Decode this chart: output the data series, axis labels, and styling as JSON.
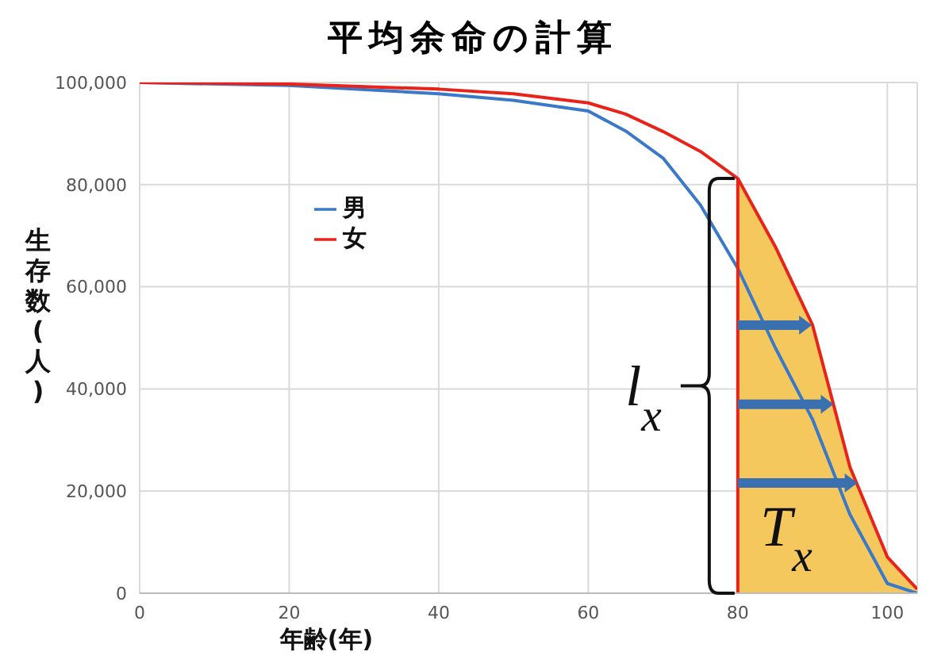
{
  "chart_data": {
    "type": "line",
    "title": "平均余命の計算",
    "xlabel": "年齢(年)",
    "ylabel": "生存数(人)",
    "xlim": [
      0,
      104
    ],
    "xticks": [
      0,
      20,
      40,
      60,
      80,
      100
    ],
    "ylim": [
      0,
      100000
    ],
    "yticks": [
      0,
      {
        "value": 20000,
        "label": "20,000"
      },
      {
        "value": 40000,
        "label": "40,000"
      },
      {
        "value": 60000,
        "label": "60,000"
      },
      {
        "value": 80000,
        "label": "80,000"
      },
      {
        "value": 100000,
        "label": "100,000"
      }
    ],
    "grid": true,
    "legend": "top left",
    "marker": "none",
    "line_style": "solid",
    "series": [
      {
        "type": "area",
        "color": "#f5c85e",
        "x": [
          80,
          85,
          90,
          95,
          100,
          104
        ],
        "values": [
          81200,
          67900,
          52500,
          24700,
          7100,
          800
        ]
      },
      {
        "name": "男",
        "color": "#3a78c8",
        "x": [
          0,
          20,
          40,
          50,
          60,
          65,
          70,
          75,
          80,
          85,
          90,
          95,
          100,
          104
        ],
        "values": [
          100000,
          99400,
          97800,
          96500,
          94400,
          90500,
          85200,
          76000,
          63600,
          48100,
          34000,
          15400,
          1900,
          0
        ]
      },
      {
        "name": "女",
        "color": "#e8231a",
        "x": [
          0,
          20,
          40,
          50,
          60,
          65,
          70,
          75,
          80,
          85,
          90,
          95,
          100,
          104
        ],
        "values": [
          100000,
          99700,
          98700,
          97800,
          96000,
          93800,
          90400,
          86500,
          81200,
          67900,
          52500,
          24700,
          7100,
          800
        ]
      },
      {
        "type": "line",
        "color": "#e8231a",
        "x": [
          80,
          80
        ],
        "values": [
          0,
          81200
        ]
      }
    ],
    "annotations": [
      {
        "text": "l$_{x}$",
        "x": 80,
        "y": 81200
      },
      "T$_{x}$"
    ]
  }
}
